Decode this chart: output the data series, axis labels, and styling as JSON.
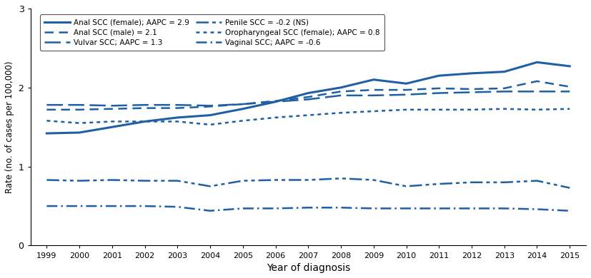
{
  "years": [
    1999,
    2000,
    2001,
    2002,
    2003,
    2004,
    2005,
    2006,
    2007,
    2008,
    2009,
    2010,
    2011,
    2012,
    2013,
    2014,
    2015
  ],
  "anal_scc_female": [
    1.42,
    1.43,
    1.5,
    1.57,
    1.62,
    1.65,
    1.73,
    1.82,
    1.93,
    2.0,
    2.1,
    2.05,
    2.15,
    2.18,
    2.2,
    2.32,
    2.27
  ],
  "anal_scc_male": [
    1.72,
    1.72,
    1.73,
    1.74,
    1.74,
    1.76,
    1.79,
    1.83,
    1.88,
    1.95,
    1.97,
    1.97,
    1.99,
    1.98,
    1.99,
    2.08,
    2.01
  ],
  "vulvar_scc": [
    1.78,
    1.78,
    1.77,
    1.78,
    1.78,
    1.77,
    1.79,
    1.82,
    1.85,
    1.9,
    1.9,
    1.91,
    1.93,
    1.94,
    1.95,
    1.95,
    1.95
  ],
  "penile_scc": [
    0.83,
    0.82,
    0.83,
    0.82,
    0.82,
    0.75,
    0.82,
    0.83,
    0.83,
    0.85,
    0.83,
    0.75,
    0.78,
    0.8,
    0.8,
    0.82,
    0.73
  ],
  "oropharyngeal_scc_female": [
    1.58,
    1.55,
    1.57,
    1.57,
    1.57,
    1.53,
    1.58,
    1.62,
    1.65,
    1.68,
    1.7,
    1.72,
    1.72,
    1.72,
    1.73,
    1.72,
    1.73
  ],
  "vaginal_scc": [
    0.5,
    0.5,
    0.5,
    0.5,
    0.49,
    0.44,
    0.47,
    0.47,
    0.48,
    0.48,
    0.47,
    0.47,
    0.47,
    0.47,
    0.47,
    0.46,
    0.44
  ],
  "color": "#1f5fa6",
  "ylabel": "Rate (no. of cases per 100,000)",
  "xlabel": "Year of diagnosis",
  "ylim": [
    0,
    3
  ],
  "yticks": [
    0,
    1,
    2,
    3
  ],
  "legend_labels_left": [
    "Anal SCC (female); AAPC = 2.9",
    "Vulvar SCC; AAPC = 1.3",
    "Oropharyngeal SCC (female); AAPC = 0.8"
  ],
  "legend_labels_right": [
    "Anal SCC (male) = 2.1",
    "Penile SCC = -0.2 (NS)",
    "Vaginal SCC; AAPC = -0.6"
  ]
}
